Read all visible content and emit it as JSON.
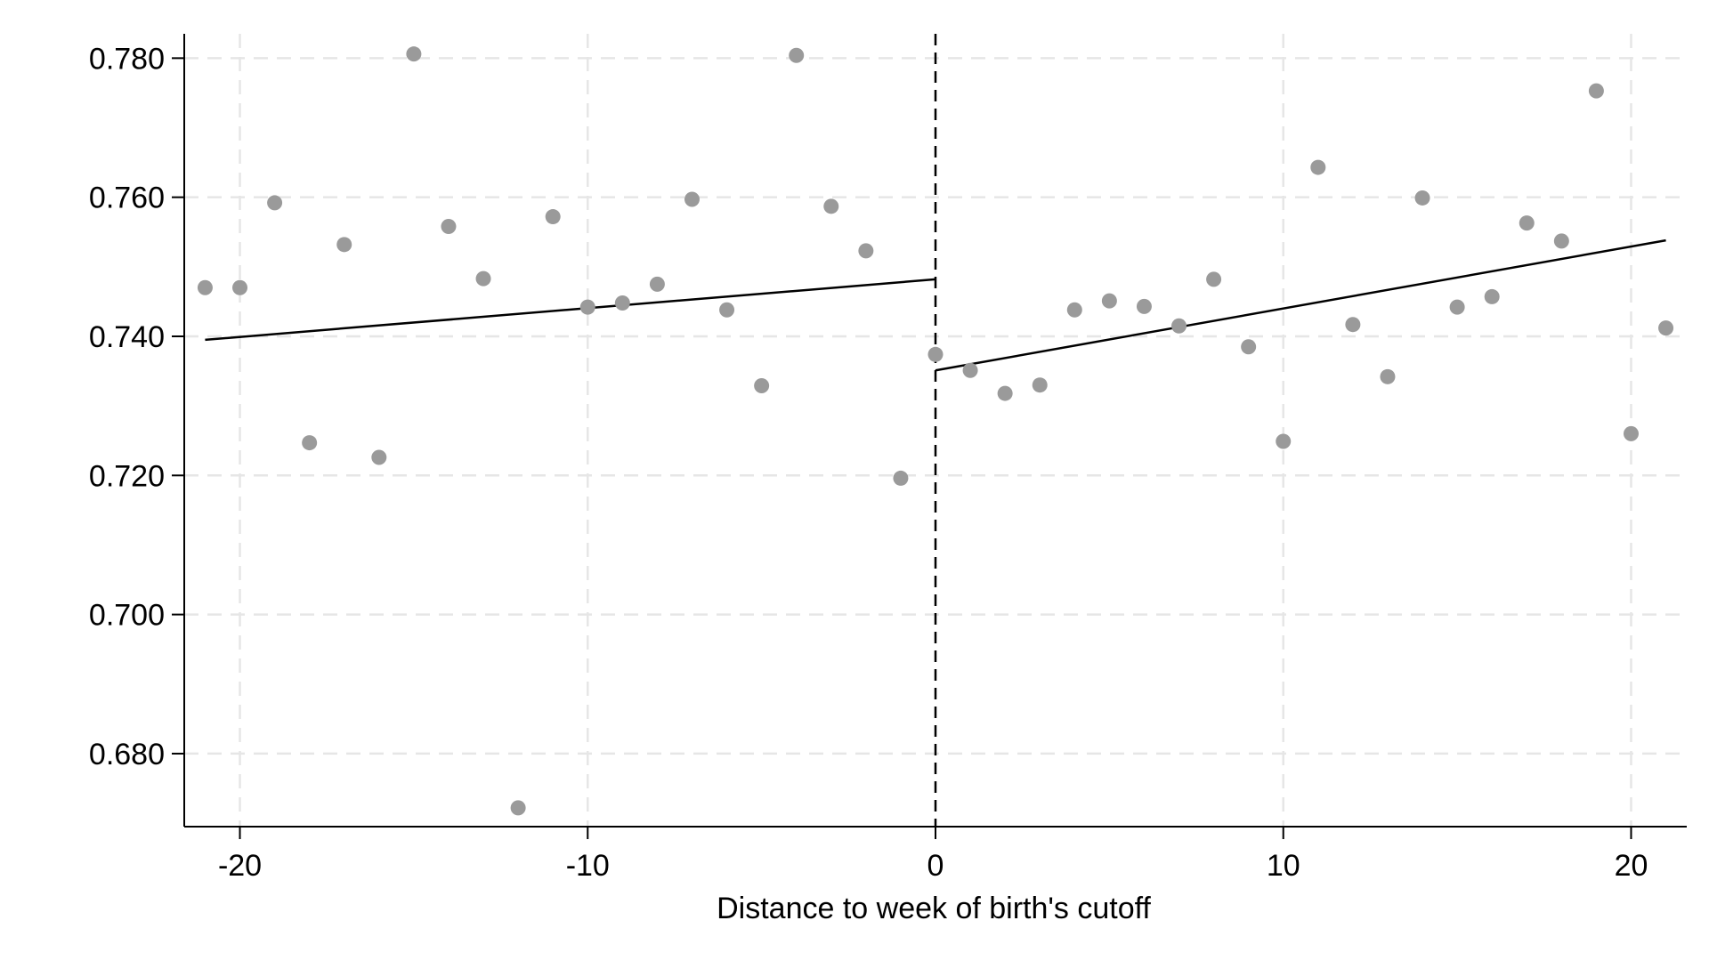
{
  "chart_data": {
    "type": "scatter",
    "title": "",
    "xlabel": "Distance to week of birth's cutoff",
    "ylabel": "",
    "xlim": [
      -21.6,
      21.6
    ],
    "ylim": [
      0.6695,
      0.7835
    ],
    "x_ticks": [
      -20,
      -10,
      0,
      10,
      20
    ],
    "x_tick_labels": [
      "-20",
      "-10",
      "0",
      "10",
      "20"
    ],
    "y_ticks": [
      0.68,
      0.7,
      0.72,
      0.74,
      0.76,
      0.78
    ],
    "y_tick_labels": [
      "0.680",
      "0.700",
      "0.720",
      "0.740",
      "0.760",
      "0.780"
    ],
    "grid": true,
    "cutoff_line_x": 0,
    "colors": {
      "points": "#9a9a9a",
      "fit": "#000000",
      "grid": "#e6e6e6",
      "axis": "#000000"
    },
    "points": {
      "x": [
        -21,
        -20,
        -19,
        -18,
        -17,
        -16,
        -15,
        -14,
        -13,
        -12,
        -11,
        -10,
        -9,
        -8,
        -7,
        -6,
        -5,
        -4,
        -3,
        -2,
        -1,
        0,
        1,
        2,
        3,
        4,
        5,
        6,
        7,
        8,
        9,
        10,
        11,
        12,
        13,
        14,
        15,
        16,
        17,
        18,
        19,
        20,
        21
      ],
      "y": [
        0.747,
        0.747,
        0.7592,
        0.7247,
        0.7532,
        0.7226,
        0.7806,
        0.7558,
        0.7483,
        0.6722,
        0.7572,
        0.7442,
        0.7448,
        0.7475,
        0.7597,
        0.7438,
        0.7329,
        0.7804,
        0.7587,
        0.7523,
        0.7196,
        0.7374,
        0.7351,
        0.7318,
        0.733,
        0.7438,
        0.7451,
        0.7443,
        0.7415,
        0.7482,
        0.7385,
        0.7249,
        0.7643,
        0.7417,
        0.7342,
        0.7599,
        0.7442,
        0.7457,
        0.7563,
        0.7537,
        0.7753,
        0.726,
        0.7412
      ]
    },
    "fit_lines": [
      {
        "x": [
          -21,
          0
        ],
        "y": [
          0.7395,
          0.7482
        ]
      },
      {
        "x": [
          0,
          21
        ],
        "y": [
          0.7351,
          0.7538
        ]
      }
    ]
  }
}
